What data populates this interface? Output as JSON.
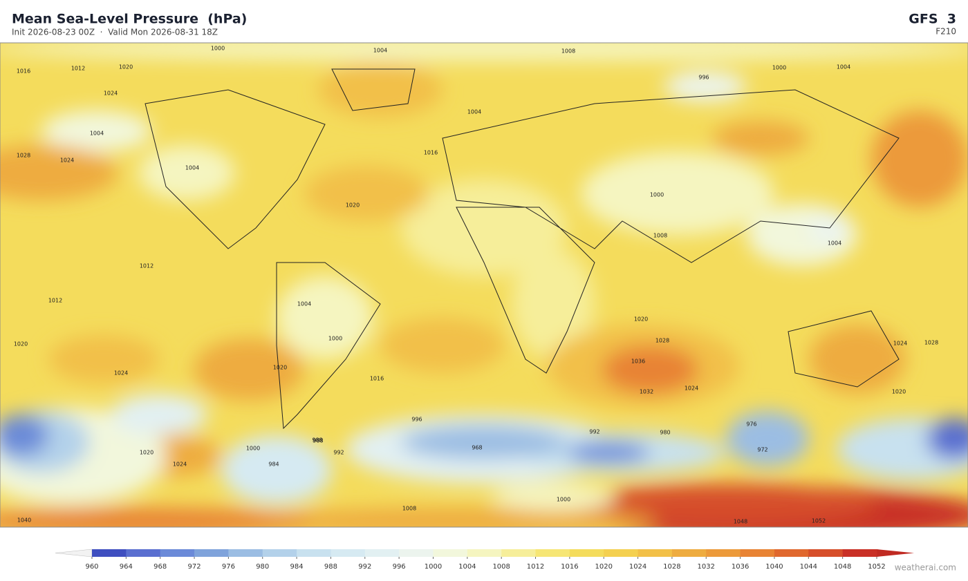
{
  "header": {
    "title": "Mean Sea-Level Pressure  (hPa)",
    "subtitle": "Init 2026-08-23 00Z  ·  Valid Mon 2026-08-31 18Z",
    "model": "GFS  3",
    "forecast_hour": "F210"
  },
  "map": {
    "contour_labels": [
      1000,
      1004,
      1008,
      1016,
      1012,
      1020,
      1024,
      1004,
      1004,
      996,
      1000,
      1004,
      1016,
      1020,
      1028,
      1024,
      1004,
      1000,
      1008,
      1012,
      1012,
      1020,
      1024,
      1028,
      1020,
      1016,
      1004,
      1000,
      1028,
      1036,
      1032,
      1024,
      1020,
      996,
      988,
      992,
      1000,
      1020,
      1024,
      984,
      992,
      988,
      972,
      968,
      980,
      976,
      1004,
      1000,
      1008,
      1048,
      1052,
      1040,
      1020,
      1024
    ]
  },
  "colorbar": {
    "ticks": [
      960,
      964,
      968,
      972,
      976,
      980,
      984,
      988,
      992,
      996,
      1000,
      1004,
      1008,
      1012,
      1016,
      1020,
      1024,
      1028,
      1032,
      1036,
      1040,
      1044,
      1048,
      1052
    ],
    "colors": [
      "#3f4fc0",
      "#5a6fd0",
      "#6b8ad8",
      "#7fa3db",
      "#9bbde3",
      "#b3d1ea",
      "#c8e1ef",
      "#d6eaf2",
      "#e2f0f2",
      "#ecf4ee",
      "#f2f7dc",
      "#f5f5c0",
      "#f6ee9a",
      "#f6e675",
      "#f4dc5c",
      "#f4d050",
      "#f2c048",
      "#eeac40",
      "#ec9a3a",
      "#e88334",
      "#e0682e",
      "#d64e2a",
      "#c93026"
    ],
    "under_color": "#f2f2f2",
    "over_color": "#c02a22"
  },
  "watermark": "weatherai.com"
}
